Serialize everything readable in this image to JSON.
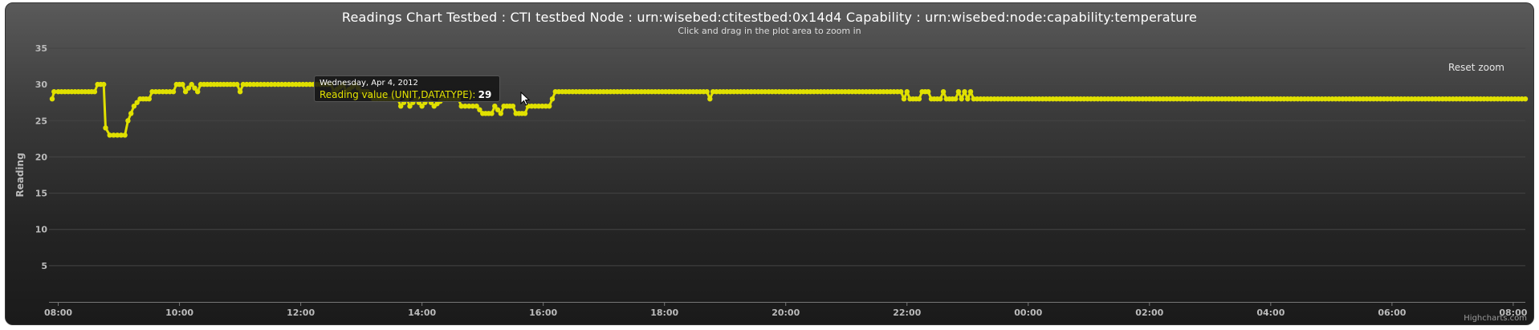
{
  "header": {
    "title": "Readings Chart Testbed : CTI testbed Node : urn:wisebed:ctitestbed:0x14d4 Capability : urn:wisebed:node:capability:temperature",
    "subtitle": "Click and drag in the plot area to zoom in"
  },
  "controls": {
    "reset_zoom": "Reset zoom"
  },
  "credits": "Highcharts.com",
  "tooltip": {
    "date": "Wednesday, Apr 4, 2012",
    "series_label": "Reading value (UNIT,DATATYPE):",
    "value": "29"
  },
  "colors": {
    "series": "#e0e000",
    "background_top": "#5a5a5a",
    "background_bottom": "#1a1a1a",
    "grid": "#444444",
    "axis_text": "#bbbbbb"
  },
  "chart_data": {
    "type": "line",
    "title": "Readings Chart Testbed : CTI testbed Node : urn:wisebed:ctitestbed:0x14d4 Capability : urn:wisebed:node:capability:temperature",
    "subtitle": "Click and drag in the plot area to zoom in",
    "xlabel": "",
    "ylabel": "Reading",
    "ylim": [
      0,
      35
    ],
    "yticks": [
      5,
      10,
      15,
      20,
      25,
      30,
      35
    ],
    "xlim_hours": [
      7.9,
      32.2
    ],
    "xtick_labels": [
      "08:00",
      "10:00",
      "12:00",
      "14:00",
      "16:00",
      "18:00",
      "20:00",
      "22:00",
      "00:00",
      "02:00",
      "04:00",
      "06:00",
      "08:00"
    ],
    "grid": true,
    "series": [
      {
        "values_hours": [
          [
            7.9,
            28
          ],
          [
            7.93,
            29
          ],
          [
            8.0,
            29
          ],
          [
            8.5,
            29
          ],
          [
            8.6,
            29
          ],
          [
            8.65,
            30
          ],
          [
            8.75,
            30
          ],
          [
            8.78,
            24
          ],
          [
            8.85,
            23
          ],
          [
            9.1,
            23
          ],
          [
            9.15,
            25
          ],
          [
            9.25,
            27
          ],
          [
            9.35,
            28
          ],
          [
            9.5,
            28
          ],
          [
            9.55,
            29
          ],
          [
            9.9,
            29
          ],
          [
            9.95,
            30
          ],
          [
            10.05,
            30
          ],
          [
            10.1,
            29
          ],
          [
            10.2,
            30
          ],
          [
            10.3,
            29
          ],
          [
            10.35,
            30
          ],
          [
            10.95,
            30
          ],
          [
            11.0,
            29
          ],
          [
            11.05,
            30
          ],
          [
            12.5,
            30
          ],
          [
            12.55,
            29
          ],
          [
            12.7,
            30
          ],
          [
            12.75,
            29
          ],
          [
            12.9,
            30
          ],
          [
            13.0,
            29
          ],
          [
            13.1,
            29
          ],
          [
            13.2,
            28
          ],
          [
            13.6,
            28
          ],
          [
            13.65,
            27
          ],
          [
            13.75,
            28
          ],
          [
            13.8,
            27
          ],
          [
            13.9,
            28
          ],
          [
            14.0,
            27
          ],
          [
            14.1,
            28
          ],
          [
            14.2,
            27
          ],
          [
            14.35,
            28
          ],
          [
            14.6,
            28
          ],
          [
            14.65,
            27
          ],
          [
            14.9,
            27
          ],
          [
            15.0,
            26
          ],
          [
            15.15,
            26
          ],
          [
            15.2,
            27
          ],
          [
            15.3,
            26
          ],
          [
            15.35,
            27
          ],
          [
            15.5,
            27
          ],
          [
            15.55,
            26
          ],
          [
            15.7,
            26
          ],
          [
            15.75,
            27
          ],
          [
            16.1,
            27
          ],
          [
            16.15,
            28
          ],
          [
            16.2,
            29
          ],
          [
            18.7,
            29
          ],
          [
            18.75,
            28
          ],
          [
            18.8,
            29
          ],
          [
            21.9,
            29
          ],
          [
            21.95,
            28
          ],
          [
            22.0,
            29
          ],
          [
            22.05,
            28
          ],
          [
            22.2,
            28
          ],
          [
            22.25,
            29
          ],
          [
            22.35,
            29
          ],
          [
            22.4,
            28
          ],
          [
            22.55,
            28
          ],
          [
            22.6,
            29
          ],
          [
            22.65,
            28
          ],
          [
            22.8,
            28
          ],
          [
            22.85,
            29
          ],
          [
            22.9,
            28
          ],
          [
            22.95,
            29
          ],
          [
            23.0,
            28
          ],
          [
            23.05,
            29
          ],
          [
            23.1,
            28
          ],
          [
            32.2,
            28
          ]
        ]
      }
    ]
  }
}
